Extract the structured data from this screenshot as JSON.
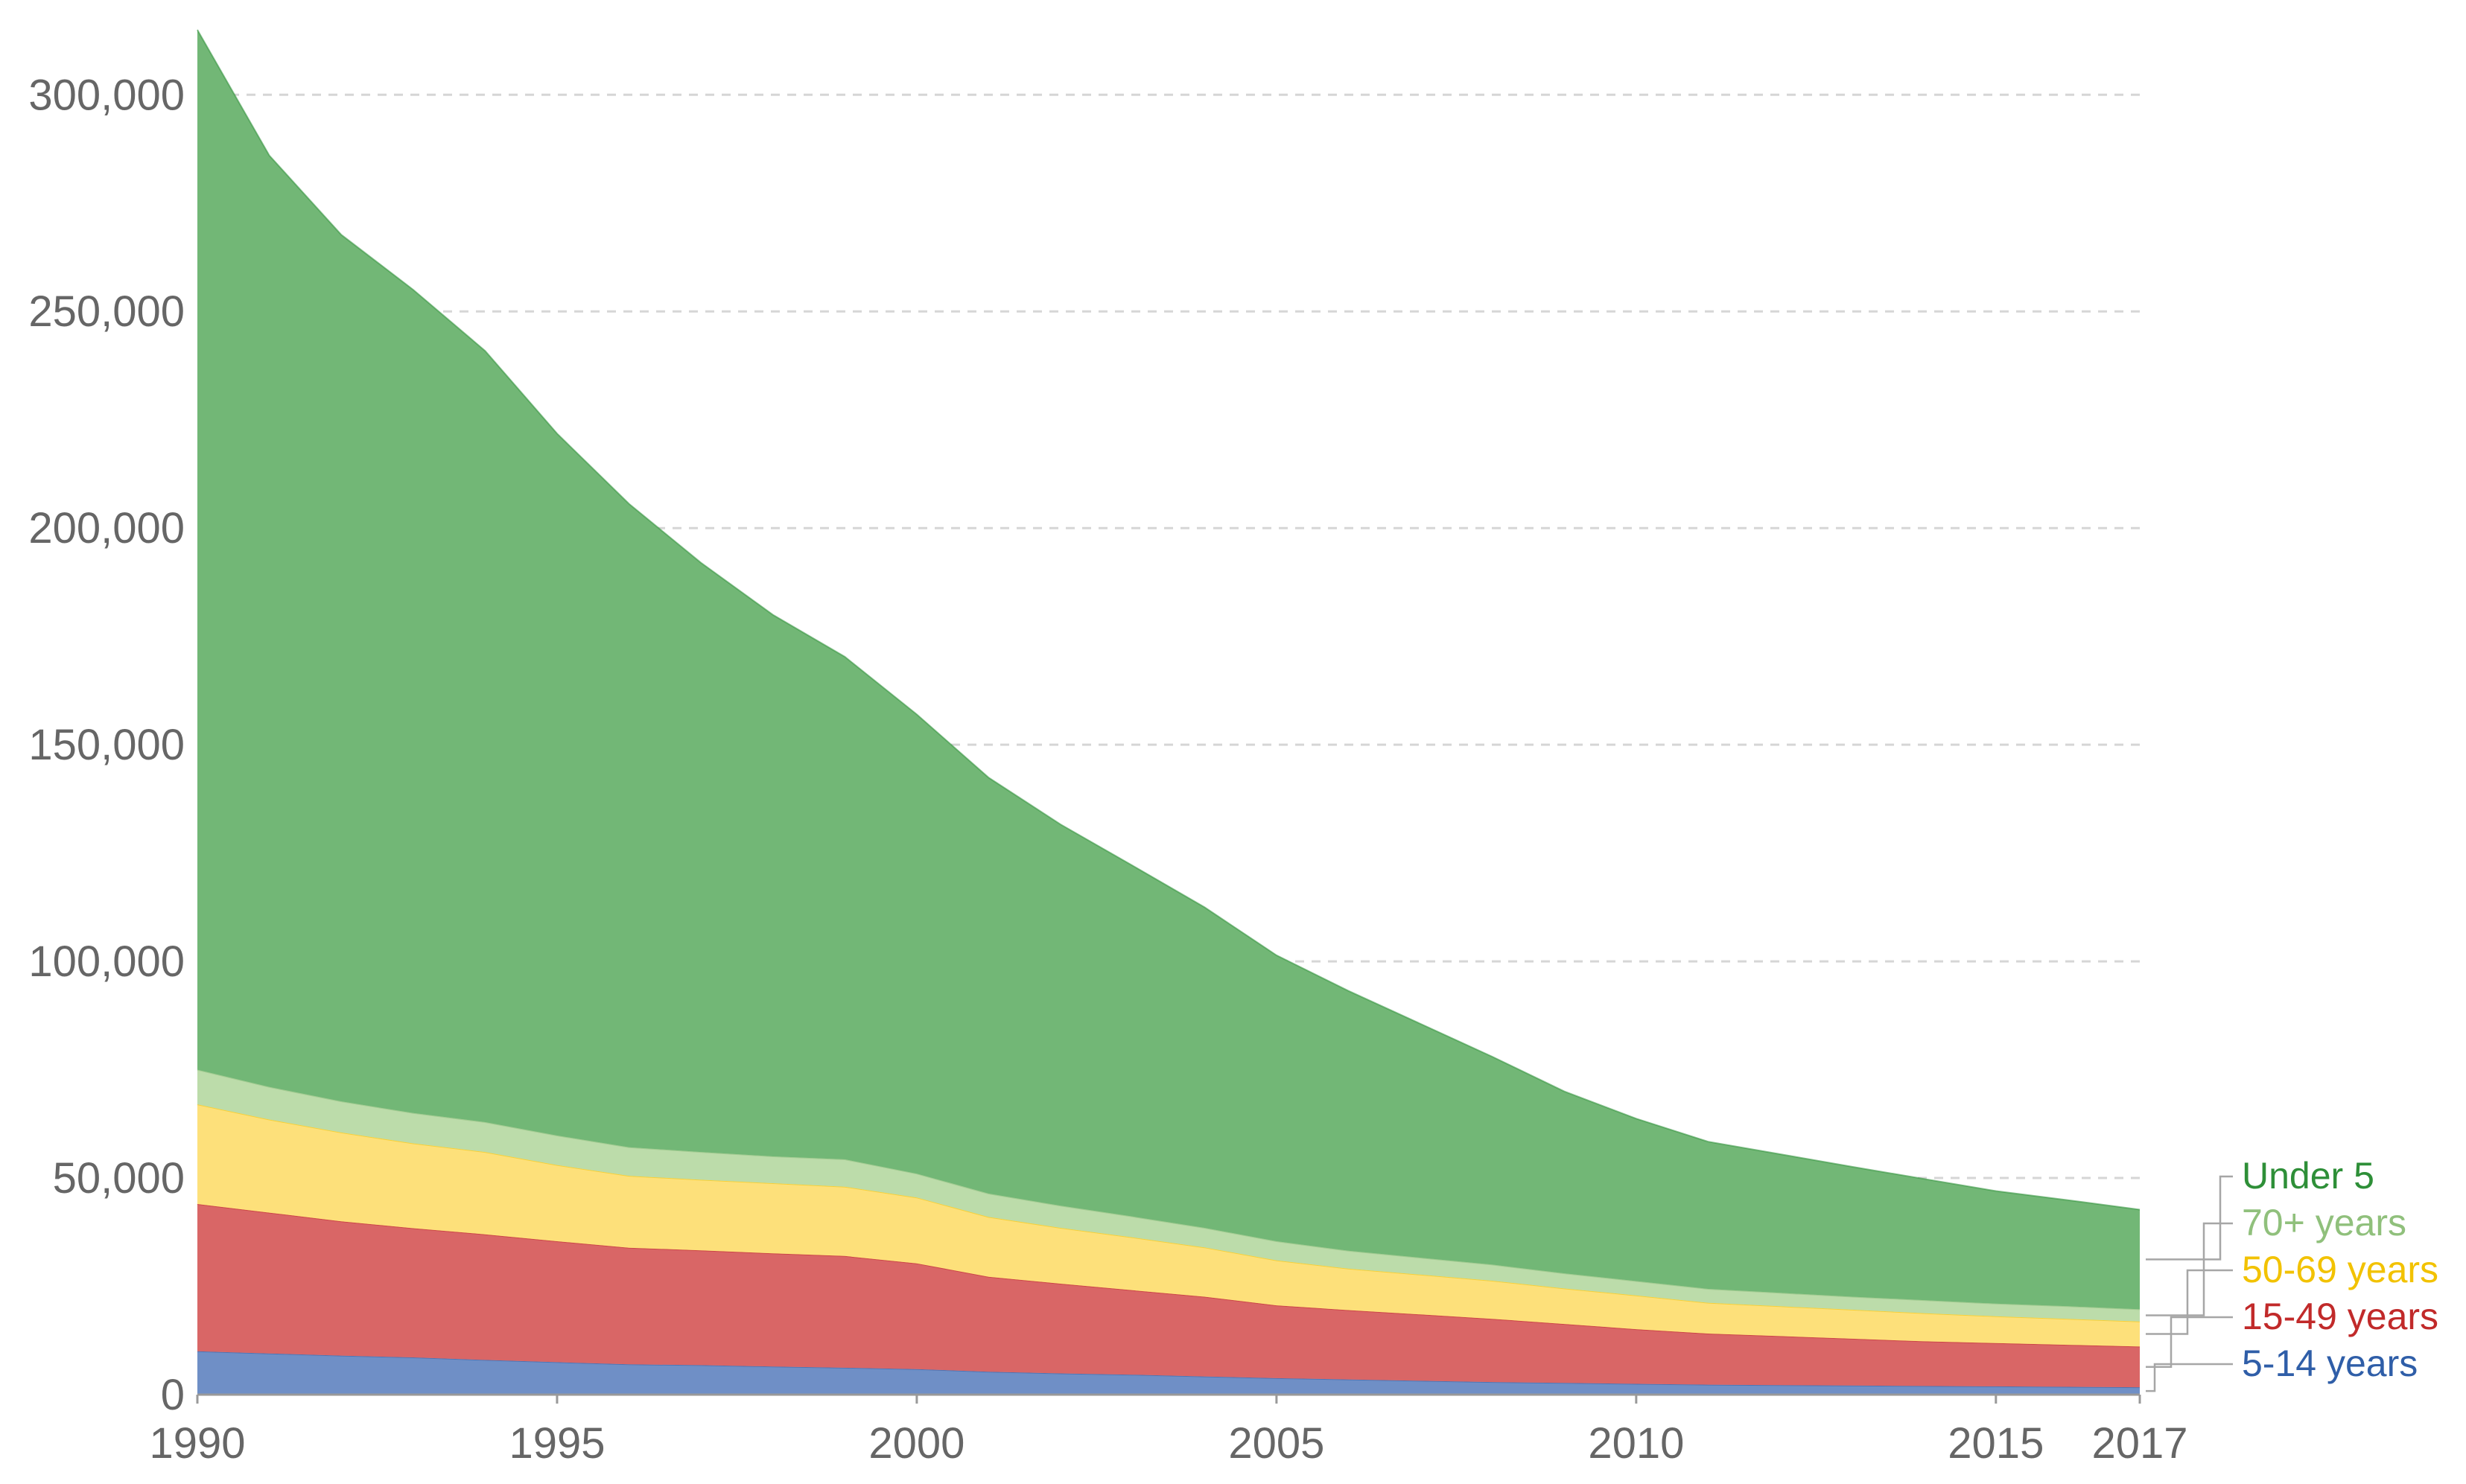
{
  "chart_data": {
    "type": "area",
    "stacked": true,
    "x": [
      1990,
      1991,
      1992,
      1993,
      1994,
      1995,
      1996,
      1997,
      1998,
      1999,
      2000,
      2001,
      2002,
      2003,
      2004,
      2005,
      2006,
      2007,
      2008,
      2009,
      2010,
      2011,
      2012,
      2013,
      2014,
      2015,
      2016,
      2017
    ],
    "xticks": [
      "1990",
      "1995",
      "2000",
      "2005",
      "2010",
      "2015",
      "2017"
    ],
    "yticks": [
      "0",
      "50,000",
      "100,000",
      "150,000",
      "200,000",
      "250,000",
      "300,000"
    ],
    "ylim": [
      0,
      315000
    ],
    "xlim": [
      1990,
      2017
    ],
    "grid": true,
    "legend_placement": "right, inline at line ends",
    "series": [
      {
        "name": "5-14 years",
        "color": "#6f8fc6",
        "label_color": "#2f5ea8",
        "values": [
          10000,
          9500,
          9000,
          8600,
          8000,
          7500,
          7000,
          6800,
          6500,
          6200,
          5900,
          5300,
          4900,
          4600,
          4200,
          3800,
          3500,
          3200,
          2900,
          2700,
          2500,
          2300,
          2200,
          2100,
          2000,
          1900,
          1800,
          1700
        ]
      },
      {
        "name": "15-49 years",
        "color": "#d96666",
        "label_color": "#c12a2a",
        "values": [
          34000,
          32500,
          31000,
          29800,
          29000,
          27900,
          26900,
          26500,
          26100,
          25800,
          24400,
          21900,
          20700,
          19500,
          18400,
          16800,
          16000,
          15300,
          14600,
          13600,
          12600,
          11800,
          11300,
          10800,
          10300,
          10000,
          9700,
          9400
        ]
      },
      {
        "name": "50-69 years",
        "color": "#fde07a",
        "label_color": "#f2c200",
        "values": [
          23000,
          21500,
          20500,
          19600,
          19000,
          17600,
          16600,
          16300,
          16200,
          16000,
          15200,
          13800,
          12900,
          12200,
          11400,
          10400,
          9600,
          9200,
          8800,
          8200,
          7800,
          7100,
          6900,
          6700,
          6500,
          6200,
          6000,
          5800
        ]
      },
      {
        "name": "70+ years",
        "color": "#bcdcaa",
        "label_color": "#90c07c",
        "values": [
          8000,
          7500,
          7200,
          7000,
          6900,
          6800,
          6600,
          6400,
          6200,
          6300,
          5500,
          5400,
          5100,
          4800,
          4500,
          4400,
          4100,
          3900,
          3700,
          3500,
          3300,
          3200,
          3100,
          3000,
          3000,
          2900,
          2900,
          2800
        ]
      },
      {
        "name": "Under 5",
        "color": "#72b776",
        "label_color": "#2e8f38",
        "values": [
          240000,
          215000,
          200000,
          190000,
          178000,
          162000,
          148500,
          136000,
          125000,
          116000,
          106000,
          96000,
          88000,
          81000,
          74000,
          66000,
          60000,
          54000,
          48000,
          42000,
          37500,
          34000,
          32000,
          30000,
          28000,
          26000,
          24500,
          23000
        ]
      }
    ]
  }
}
